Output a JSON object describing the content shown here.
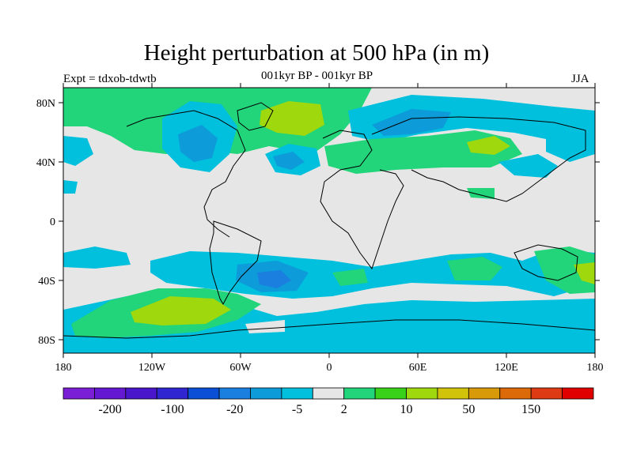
{
  "title": "Height perturbation at 500 hPa (in m)",
  "subtitle_left": "Expt = tdxob-tdwtb",
  "subtitle_center": "001kyr BP - 001kyr BP",
  "subtitle_right": "JJA",
  "x_ticks": [
    "180",
    "120W",
    "60W",
    "0",
    "60E",
    "120E",
    "180"
  ],
  "y_ticks": [
    "80N",
    "40N",
    "0",
    "40S",
    "80S"
  ],
  "colorbar": {
    "colors": [
      "#7a1fd6",
      "#6418d1",
      "#4a16cc",
      "#2f25d1",
      "#0a4fd6",
      "#1a7fde",
      "#0d9bd9",
      "#00c0dd",
      "#e6e6e6",
      "#22d47a",
      "#3ad11a",
      "#9fd80d",
      "#d1c20a",
      "#d99a0a",
      "#dc6a08",
      "#de3a14",
      "#e00000"
    ],
    "labels": [
      "-200",
      "-100",
      "-20",
      "-5",
      "2",
      "10",
      "50",
      "150"
    ]
  }
}
